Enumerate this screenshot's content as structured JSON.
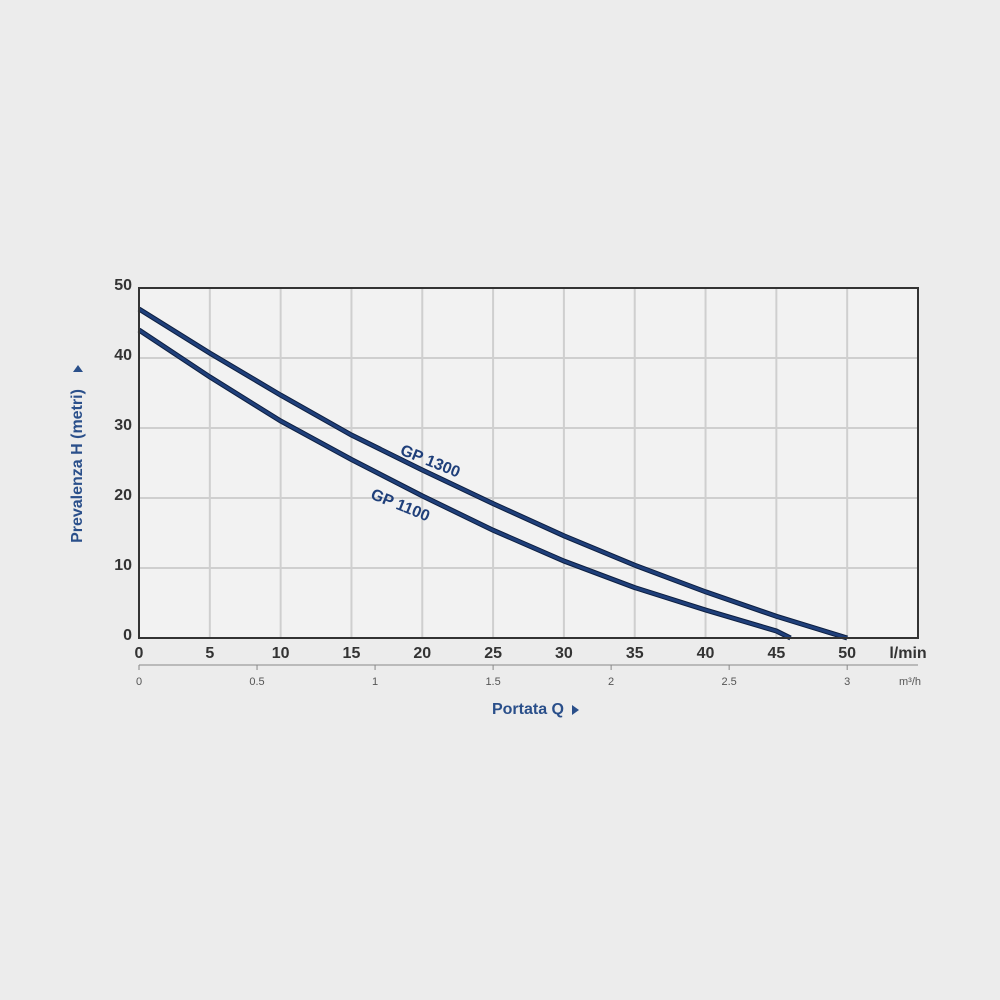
{
  "chart_data": {
    "type": "line",
    "xlabel": "Portata Q",
    "ylabel": "Prevalenza H (metri)",
    "x_unit": "l/min",
    "x2_unit": "m³/h",
    "xlim": [
      0,
      55
    ],
    "xticks": [
      0,
      5,
      10,
      15,
      20,
      25,
      30,
      35,
      40,
      45,
      50
    ],
    "x2lim": [
      0,
      3.3
    ],
    "x2ticks": [
      0,
      0.5,
      1,
      1.5,
      2,
      2.5,
      3
    ],
    "ylim": [
      0,
      50
    ],
    "yticks": [
      0,
      10,
      20,
      30,
      40,
      50
    ],
    "grid": true,
    "series": [
      {
        "name": "GP 1300",
        "color": "#1f3f7a",
        "x": [
          0,
          5,
          10,
          15,
          20,
          25,
          30,
          35,
          40,
          45,
          50
        ],
        "values": [
          47,
          40.7,
          34.7,
          29,
          24,
          19.2,
          14.6,
          10.4,
          6.6,
          3.1,
          0
        ]
      },
      {
        "name": "GP 1100",
        "color": "#1f3f7a",
        "x": [
          0,
          5,
          10,
          15,
          20,
          25,
          30,
          35,
          40,
          45,
          46
        ],
        "values": [
          44,
          37.3,
          31,
          25.5,
          20.3,
          15.4,
          11,
          7.2,
          4,
          1,
          0
        ]
      }
    ]
  }
}
